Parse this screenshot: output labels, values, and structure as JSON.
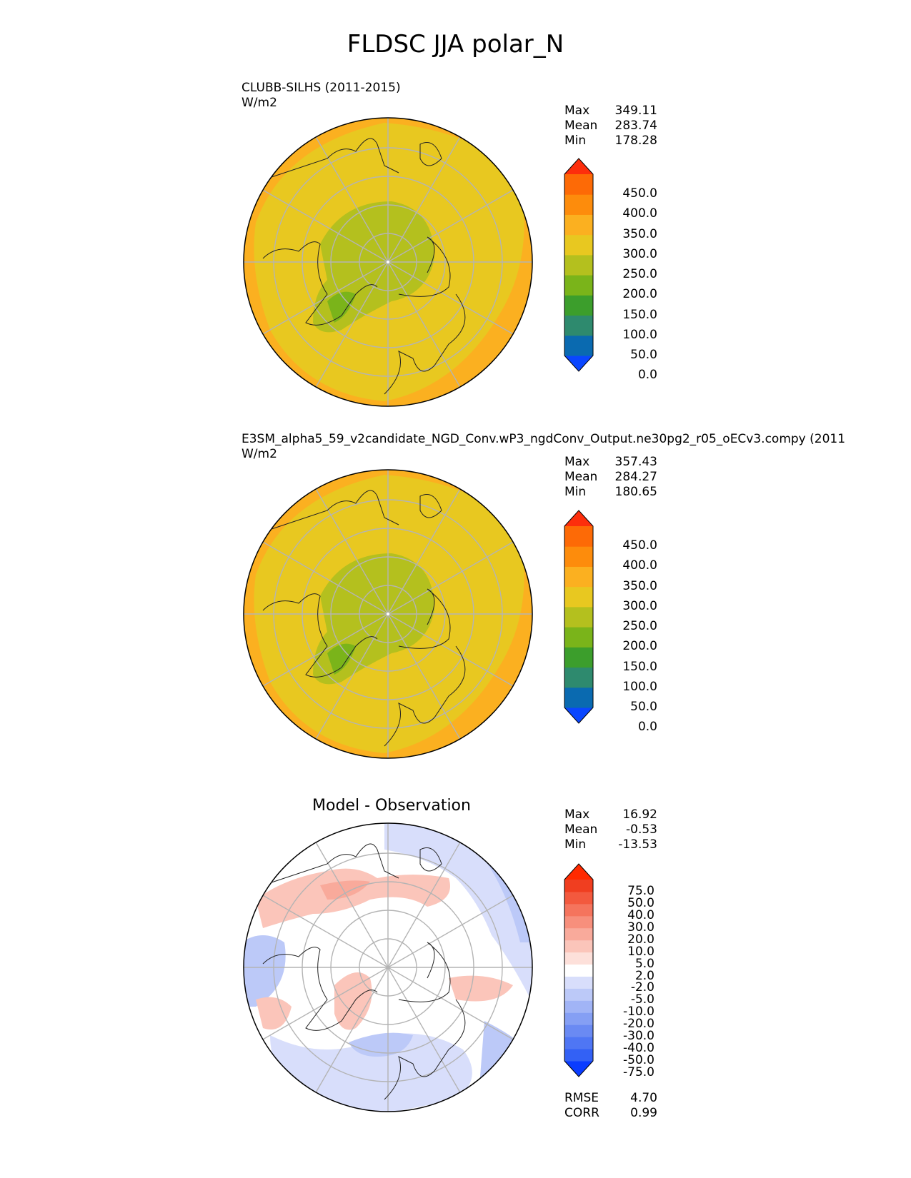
{
  "title": "FLDSC JJA polar_N",
  "panels": [
    {
      "id": "test",
      "label_lines": [
        "CLUBB-SILHS (2011-2015)",
        "W/m2"
      ],
      "stats": [
        {
          "name": "Max",
          "value": "349.11"
        },
        {
          "name": "Mean",
          "value": "283.74"
        },
        {
          "name": "Min",
          "value": "178.28"
        }
      ],
      "colorbar_ticks": [
        "450.0",
        "400.0",
        "350.0",
        "300.0",
        "250.0",
        "200.0",
        "150.0",
        "100.0",
        "50.0",
        "0.0"
      ],
      "colorbar_colors": [
        "#0a46ff",
        "#0a6ab0",
        "#2e8a6e",
        "#3c9e2c",
        "#7ab41a",
        "#b4c01e",
        "#e8c820",
        "#fbb020",
        "#fd8c0c",
        "#fd6a06",
        "#fd2e0c"
      ]
    },
    {
      "id": "ref",
      "label_lines": [
        "E3SM_alpha5_59_v2candidate_NGD_Conv.wP3_ngdConv_Output.ne30pg2_r05_oECv3.compy (2011",
        "W/m2"
      ],
      "stats": [
        {
          "name": "Max",
          "value": "357.43"
        },
        {
          "name": "Mean",
          "value": "284.27"
        },
        {
          "name": "Min",
          "value": "180.65"
        }
      ],
      "colorbar_ticks": [
        "450.0",
        "400.0",
        "350.0",
        "300.0",
        "250.0",
        "200.0",
        "150.0",
        "100.0",
        "50.0",
        "0.0"
      ],
      "colorbar_colors": [
        "#0a46ff",
        "#0a6ab0",
        "#2e8a6e",
        "#3c9e2c",
        "#7ab41a",
        "#b4c01e",
        "#e8c820",
        "#fbb020",
        "#fd8c0c",
        "#fd6a06",
        "#fd2e0c"
      ]
    },
    {
      "id": "diff",
      "title": "Model - Observation",
      "stats": [
        {
          "name": "Max",
          "value": "16.92"
        },
        {
          "name": "Mean",
          "value": "-0.53"
        },
        {
          "name": "Min",
          "value": "-13.53"
        }
      ],
      "colorbar_ticks": [
        "75.0",
        "50.0",
        "40.0",
        "30.0",
        "20.0",
        "10.0",
        "5.0",
        "2.0",
        "-2.0",
        "-5.0",
        "-10.0",
        "-20.0",
        "-30.0",
        "-40.0",
        "-50.0",
        "-75.0"
      ],
      "colorbar_colors": [
        "#0a3cff",
        "#3361f5",
        "#4f76f4",
        "#6a8af3",
        "#859ff4",
        "#a1b4f6",
        "#bcc9f8",
        "#d8defb",
        "#ffffff",
        "#fde0da",
        "#fbc5ba",
        "#f9aa9b",
        "#f78f7c",
        "#f5745d",
        "#f3593e",
        "#f03e20",
        "#ff2a00"
      ],
      "metrics": [
        {
          "name": "RMSE",
          "value": "4.70"
        },
        {
          "name": "CORR",
          "value": "0.99"
        }
      ]
    }
  ]
}
